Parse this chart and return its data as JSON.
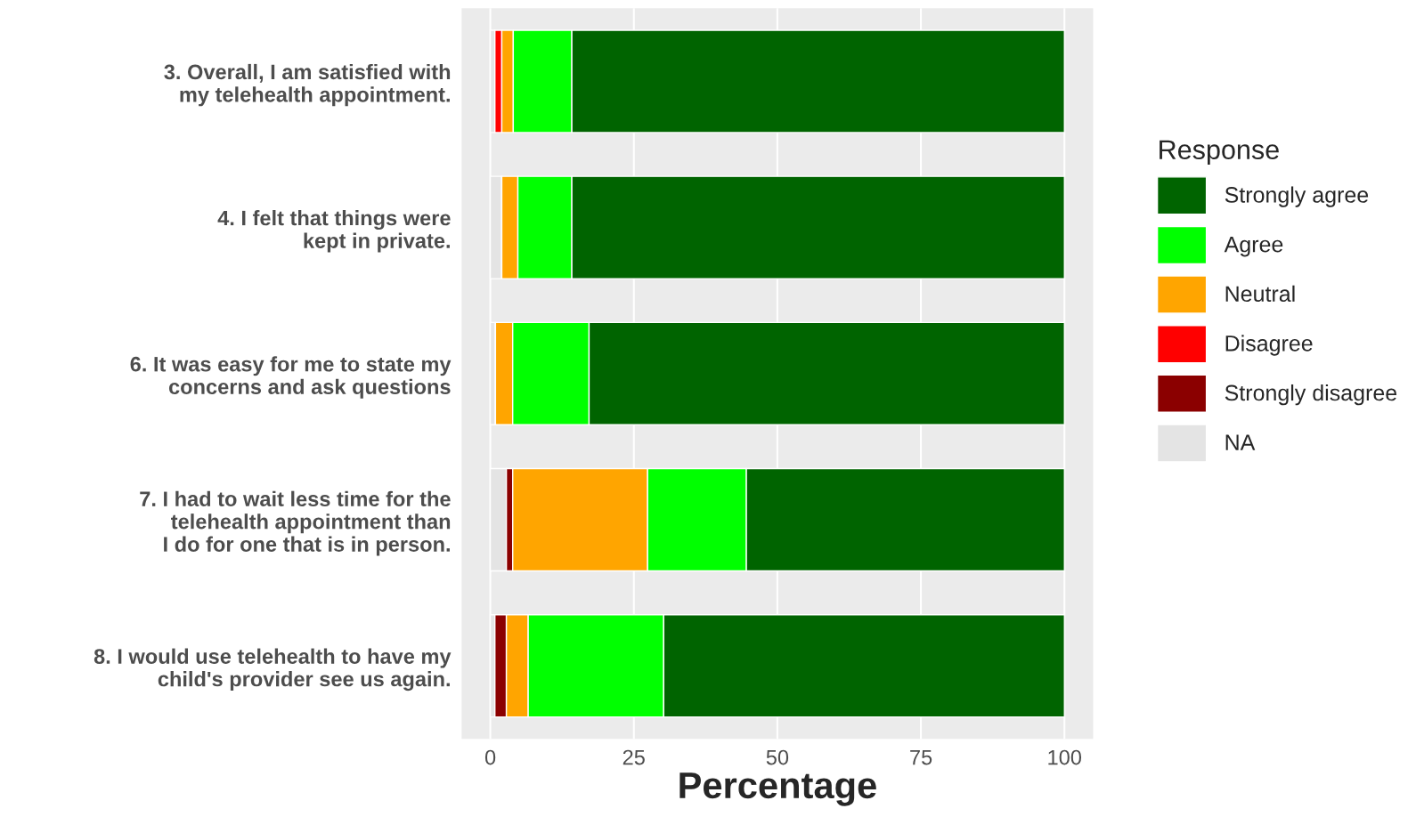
{
  "chart_data": {
    "type": "bar",
    "orientation": "horizontal",
    "stacked": true,
    "xlabel": "Percentage",
    "legend_title": "Response",
    "legend": "right",
    "categories": [
      "3. Overall, I am satisfied with\nmy telehealth appointment.",
      "4. I felt that things were\nkept in private.",
      "6. It was easy for me to state my\nconcerns and ask questions",
      "7. I had to wait less time for the\ntelehealth appointment than\nI do for one that is in person.",
      "8. I would use telehealth to have my\nchild's provider see us again."
    ],
    "series": [
      {
        "name": "NA",
        "color": "#e4e4e4",
        "values": [
          0.8,
          2,
          0.9,
          2.8,
          0.8
        ]
      },
      {
        "name": "Strongly disagree",
        "color": "#8b0000",
        "values": [
          0,
          0,
          0,
          1.1,
          2
        ]
      },
      {
        "name": "Disagree",
        "color": "#ff0000",
        "values": [
          1.2,
          0,
          0,
          0,
          0
        ]
      },
      {
        "name": "Neutral",
        "color": "#ffa500",
        "values": [
          2,
          2.8,
          3,
          23.5,
          3.8
        ]
      },
      {
        "name": "Agree",
        "color": "#00ff00",
        "values": [
          10.2,
          9.4,
          13.3,
          17.2,
          23.6
        ]
      },
      {
        "name": "Strongly agree",
        "color": "#006400",
        "values": [
          85.8,
          85.8,
          82.8,
          55.4,
          69.8
        ]
      }
    ],
    "xlim": [
      -5,
      105
    ],
    "xticks": [
      0,
      25,
      50,
      75,
      100
    ],
    "grid": "x"
  }
}
